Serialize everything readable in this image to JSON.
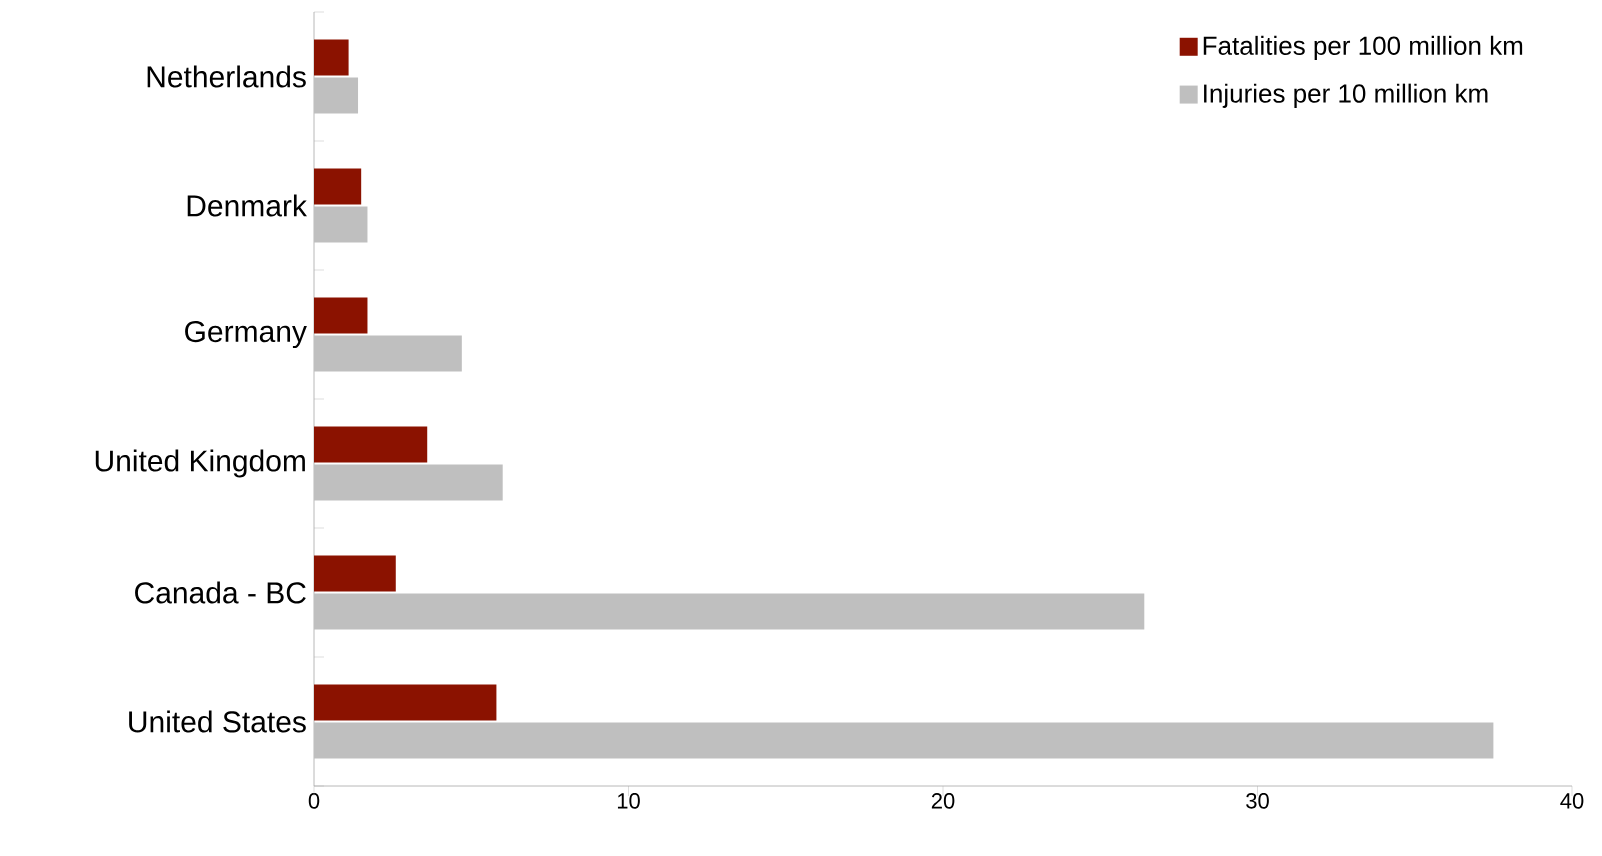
{
  "chart_data": {
    "type": "bar",
    "orientation": "horizontal",
    "categories": [
      "Netherlands",
      "Denmark",
      "Germany",
      "United Kingdom",
      "Canada - BC",
      "United States"
    ],
    "series": [
      {
        "name": "Fatalities per 100 million km",
        "color": "#8b1200",
        "values": [
          1.1,
          1.5,
          1.7,
          3.6,
          2.6,
          5.8
        ]
      },
      {
        "name": "Injuries per 10 million km",
        "color": "#bfbfbf",
        "values": [
          1.4,
          1.7,
          4.7,
          6.0,
          26.4,
          37.5
        ]
      }
    ],
    "xlim": [
      0,
      40
    ],
    "xticks": [
      0,
      10,
      20,
      30,
      40
    ],
    "legend": "top right"
  }
}
